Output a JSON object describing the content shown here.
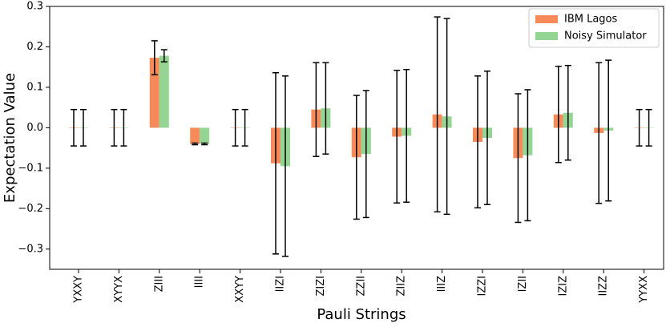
{
  "chart_data": {
    "type": "bar",
    "xlabel": "Pauli Strings",
    "ylabel": "Expectation Value",
    "categories": [
      "YXXY",
      "XYYX",
      "ZIII",
      "IIII",
      "XXYY",
      "IIZI",
      "ZIZI",
      "ZZII",
      "ZIIZ",
      "IIIZ",
      "IZZI",
      "IZII",
      "IZIZ",
      "IIZZ",
      "YYXX"
    ],
    "series": [
      {
        "name": "IBM Lagos",
        "color": "#f68b59",
        "values": [
          0,
          0,
          0.173,
          -0.04,
          0,
          -0.088,
          0.045,
          -0.073,
          -0.022,
          0.033,
          -0.035,
          -0.075,
          0.033,
          -0.013,
          0
        ],
        "errors": [
          0.045,
          0.045,
          0.042,
          0.002,
          0.045,
          0.224,
          0.116,
          0.153,
          0.164,
          0.241,
          0.163,
          0.159,
          0.119,
          0.174,
          0.045
        ]
      },
      {
        "name": "Noisy Simulator",
        "color": "#95d594",
        "values": [
          0,
          0,
          0.178,
          -0.04,
          0,
          -0.095,
          0.048,
          -0.065,
          -0.02,
          0.028,
          -0.025,
          -0.068,
          0.037,
          -0.007,
          0
        ],
        "errors": [
          0.045,
          0.045,
          0.015,
          0.002,
          0.045,
          0.223,
          0.113,
          0.157,
          0.164,
          0.242,
          0.165,
          0.162,
          0.117,
          0.174,
          0.045
        ]
      }
    ],
    "ylim": [
      -0.35,
      0.3
    ],
    "yticks": [
      {
        "value": -0.3,
        "label": "−0.3"
      },
      {
        "value": -0.2,
        "label": "−0.2"
      },
      {
        "value": -0.1,
        "label": "−0.1"
      },
      {
        "value": 0,
        "label": "0.0"
      },
      0.1,
      0.2,
      0.3
    ],
    "legend": "upper right"
  }
}
